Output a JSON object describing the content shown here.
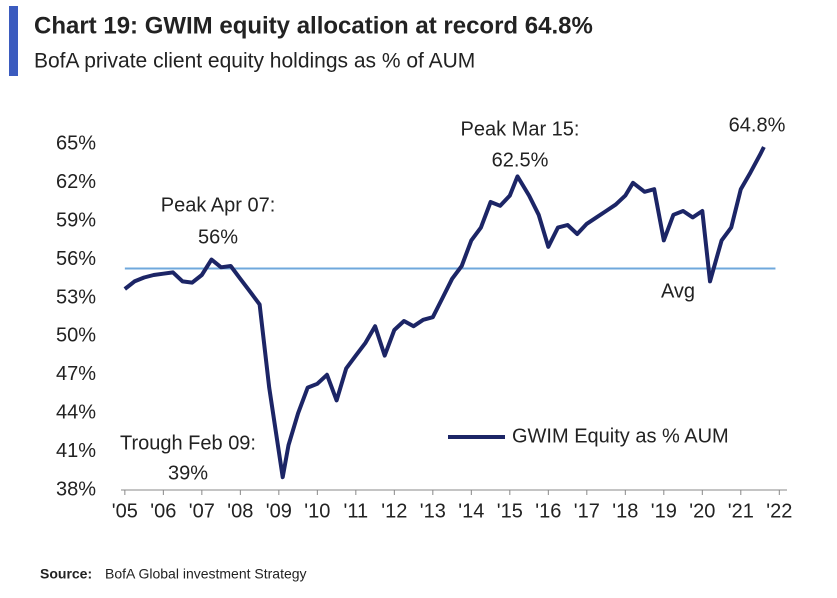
{
  "chart_data": {
    "type": "line",
    "title": "Chart 19: GWIM equity allocation at record 64.8%",
    "subtitle": "BofA private client equity holdings as % of AUM",
    "source_label": "Source:",
    "source": "BofA Global investment Strategy",
    "x": [
      2005.0,
      2005.25,
      2005.5,
      2005.75,
      2006.0,
      2006.25,
      2006.5,
      2006.75,
      2007.0,
      2007.25,
      2007.5,
      2007.75,
      2008.0,
      2008.25,
      2008.5,
      2008.75,
      2009.1,
      2009.25,
      2009.5,
      2009.75,
      2010.0,
      2010.25,
      2010.5,
      2010.75,
      2011.0,
      2011.25,
      2011.5,
      2011.75,
      2012.0,
      2012.25,
      2012.5,
      2012.75,
      2013.0,
      2013.25,
      2013.5,
      2013.75,
      2014.0,
      2014.25,
      2014.5,
      2014.75,
      2015.0,
      2015.2,
      2015.5,
      2015.75,
      2016.0,
      2016.25,
      2016.5,
      2016.75,
      2017.0,
      2017.25,
      2017.5,
      2017.75,
      2018.0,
      2018.2,
      2018.5,
      2018.75,
      2019.0,
      2019.25,
      2019.5,
      2019.75,
      2020.0,
      2020.2,
      2020.5,
      2020.75,
      2021.0,
      2021.25,
      2021.5,
      2021.6
    ],
    "series": [
      {
        "name": "GWIM Equity as % AUM",
        "color": "#1c2566",
        "values": [
          53.7,
          54.3,
          54.6,
          54.8,
          54.9,
          55.0,
          54.3,
          54.2,
          54.8,
          56.0,
          55.4,
          55.5,
          54.5,
          53.5,
          52.5,
          46.0,
          39.0,
          41.5,
          44.0,
          46.0,
          46.3,
          47.0,
          45.0,
          47.5,
          48.5,
          49.5,
          50.8,
          48.5,
          50.5,
          51.2,
          50.8,
          51.3,
          51.5,
          53.0,
          54.5,
          55.5,
          57.5,
          58.5,
          60.5,
          60.2,
          61.0,
          62.5,
          61.0,
          59.5,
          57.0,
          58.5,
          58.7,
          58.0,
          58.8,
          59.3,
          59.8,
          60.3,
          61.0,
          62.0,
          61.3,
          61.5,
          57.5,
          59.5,
          59.8,
          59.3,
          59.8,
          54.3,
          57.5,
          58.5,
          61.5,
          62.8,
          64.2,
          64.8
        ]
      }
    ],
    "avg": 55.3,
    "avg_color": "#6fa8dc",
    "xlim": [
      2004.9,
      2022.2
    ],
    "xticks": [
      {
        "value": 2005,
        "label": "'05"
      },
      {
        "value": 2006,
        "label": "'06"
      },
      {
        "value": 2007,
        "label": "'07"
      },
      {
        "value": 2008,
        "label": "'08"
      },
      {
        "value": 2009,
        "label": "'09"
      },
      {
        "value": 2010,
        "label": "'10"
      },
      {
        "value": 2011,
        "label": "'11"
      },
      {
        "value": 2012,
        "label": "'12"
      },
      {
        "value": 2013,
        "label": "'13"
      },
      {
        "value": 2014,
        "label": "'14"
      },
      {
        "value": 2015,
        "label": "'15"
      },
      {
        "value": 2016,
        "label": "'16"
      },
      {
        "value": 2017,
        "label": "'17"
      },
      {
        "value": 2018,
        "label": "'18"
      },
      {
        "value": 2019,
        "label": "'19"
      },
      {
        "value": 2020,
        "label": "'20"
      },
      {
        "value": 2021,
        "label": "'21"
      },
      {
        "value": 2022,
        "label": "'22"
      }
    ],
    "ylim": [
      38,
      65.5
    ],
    "yticks": [
      {
        "value": 38,
        "label": "38%"
      },
      {
        "value": 41,
        "label": "41%"
      },
      {
        "value": 44,
        "label": "44%"
      },
      {
        "value": 47,
        "label": "47%"
      },
      {
        "value": 50,
        "label": "50%"
      },
      {
        "value": 53,
        "label": "53%"
      },
      {
        "value": 56,
        "label": "56%"
      },
      {
        "value": 59,
        "label": "59%"
      },
      {
        "value": 62,
        "label": "62%"
      },
      {
        "value": 65,
        "label": "65%"
      }
    ],
    "annotations": [
      "Peak Apr 07:",
      "56%",
      "Peak Mar 15:",
      "62.5%",
      "Trough Feb 09:",
      "39%",
      "64.8%",
      "Avg"
    ]
  }
}
